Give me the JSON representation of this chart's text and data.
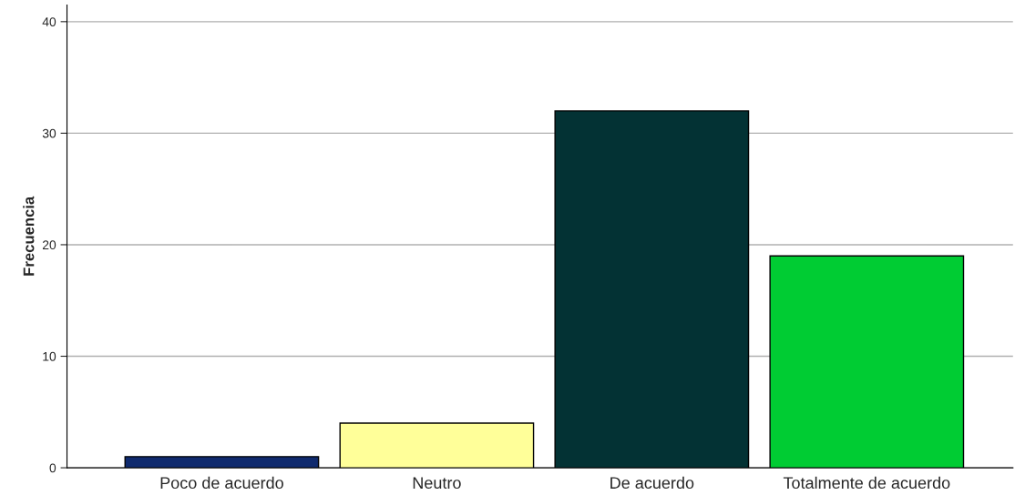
{
  "chart_data": {
    "type": "bar",
    "ylabel": "Frecuencia",
    "categories": [
      "Poco de acuerdo",
      "Neutro",
      "De acuerdo",
      "Totalmente de acuerdo"
    ],
    "values": [
      1,
      4,
      32,
      19
    ],
    "colors": [
      "#0f2a6e",
      "#ffff99",
      "#033234",
      "#00cc33"
    ],
    "ylim": [
      0,
      41.5
    ],
    "yticks": [
      0,
      10,
      20,
      30,
      40
    ],
    "grid": "y",
    "legend": false
  }
}
